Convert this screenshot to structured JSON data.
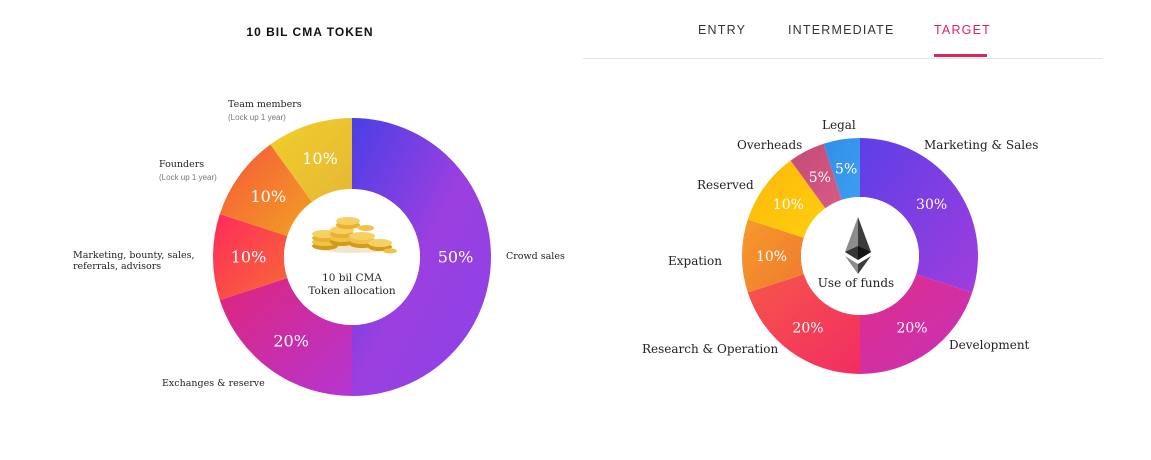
{
  "tabs": [
    {
      "label": "ENTRY",
      "active": false
    },
    {
      "label": "INTERMEDIATE",
      "active": false
    },
    {
      "label": "TARGET",
      "active": true
    }
  ],
  "colors": {
    "accent": "#e0245e"
  },
  "chart_data": [
    {
      "type": "pie",
      "title": "10 BIL CMA TOKEN",
      "center_text": [
        "10 bil CMA",
        "Token allocation"
      ],
      "center_icon": "gold-coins-icon",
      "slices": [
        {
          "label": "Crowd sales",
          "sub": "",
          "value": 50,
          "display": "50%",
          "colors": [
            "#4a3fe6",
            "#9b3fe0",
            "#8a42e8"
          ]
        },
        {
          "label": "Exchanges & reserve",
          "sub": "",
          "value": 20,
          "display": "20%",
          "colors": [
            "#e0257a",
            "#b535d3"
          ]
        },
        {
          "label": "Marketing, bounty, sales,\nreferrals, advisors",
          "sub": "",
          "value": 10,
          "display": "10%",
          "colors": [
            "#ff2a5c",
            "#f76a35"
          ]
        },
        {
          "label": "Founders",
          "sub": "(Lock up 1 year)",
          "value": 10,
          "display": "10%",
          "colors": [
            "#f4573a",
            "#f3a023"
          ]
        },
        {
          "label": "Team members",
          "sub": "(Lock up 1 year)",
          "value": 10,
          "display": "10%",
          "colors": [
            "#f0cf2a",
            "#e5b735"
          ]
        }
      ]
    },
    {
      "type": "pie",
      "title": "",
      "center_text": [
        "Use of funds"
      ],
      "center_icon": "ethereum-icon",
      "slices": [
        {
          "label": "Marketing & Sales",
          "value": 30,
          "display": "30%",
          "colors": [
            "#5d3fe8",
            "#a03ddc"
          ]
        },
        {
          "label": "Development",
          "value": 20,
          "display": "20%",
          "colors": [
            "#e22c8a",
            "#c532b9"
          ]
        },
        {
          "label": "Research & Operation",
          "value": 20,
          "display": "20%",
          "colors": [
            "#f7564a",
            "#f12d62"
          ]
        },
        {
          "label": "Expation",
          "value": 10,
          "display": "10%",
          "colors": [
            "#f79a2a",
            "#ee7a30"
          ]
        },
        {
          "label": "Reserved",
          "value": 10,
          "display": "10%",
          "colors": [
            "#fcb70a",
            "#ffcf0f"
          ]
        },
        {
          "label": "Overheads",
          "value": 5,
          "display": "5%",
          "colors": [
            "#c34b76",
            "#d85b86"
          ]
        },
        {
          "label": "Legal",
          "value": 5,
          "display": "5%",
          "colors": [
            "#2f8ee8",
            "#3f9df0"
          ]
        }
      ]
    }
  ]
}
